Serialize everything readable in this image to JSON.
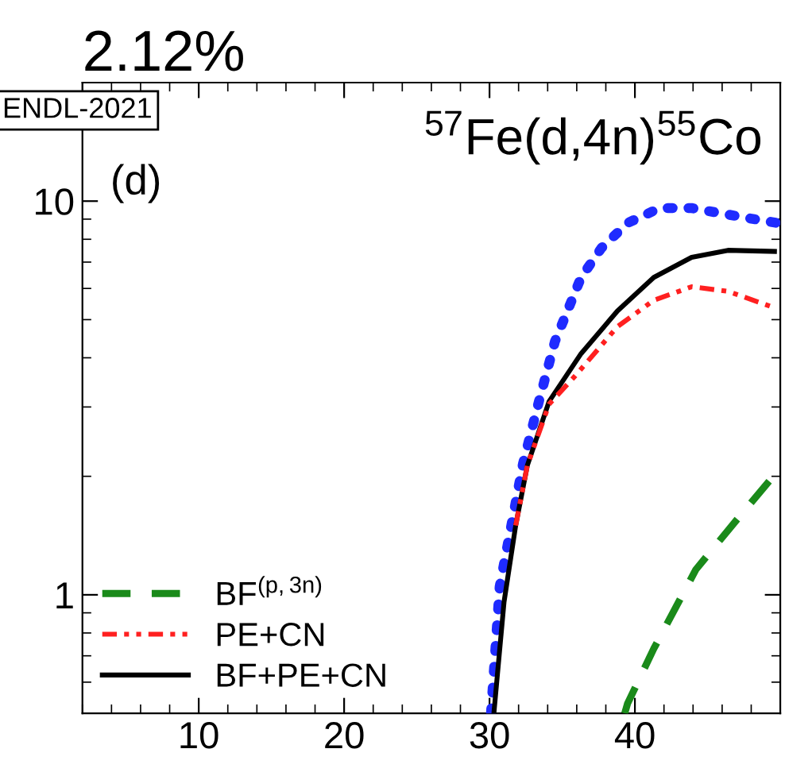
{
  "chart_data": {
    "type": "line",
    "title": "2.12%",
    "subtitle": "$^{57}$Fe(d,4n)$^{55}$Co",
    "annotations": [
      "(d)",
      "ENDL-2021"
    ],
    "xlim": [
      2,
      50
    ],
    "xticks": [
      10,
      20,
      30,
      40
    ],
    "ylim": [
      0.5,
      20
    ],
    "yticks": [
      1,
      10
    ],
    "log": "y",
    "legend": "bottom left",
    "grid": false,
    "series": [
      {
        "color": "#1f2bff",
        "line_style": "dotted",
        "x": [
          30.1,
          30.7,
          31.5,
          32.3,
          33.4,
          34.5,
          36.3,
          37.7,
          39.5,
          41.7,
          43.9,
          46.0,
          48.2,
          49.8
        ],
        "values": [
          0.5,
          1.05,
          1.5,
          2.15,
          3.1,
          4.4,
          6.4,
          7.6,
          8.8,
          9.6,
          9.6,
          9.3,
          9.0,
          8.8
        ]
      },
      {
        "name": "BF$^{(p,3n)}$",
        "color": "#1a8a1a",
        "line_style": "dashed",
        "x": [
          39.3,
          39.5,
          41.3,
          44.2,
          47,
          50
        ],
        "values": [
          0.5,
          0.53,
          0.73,
          1.16,
          1.55,
          2.1
        ]
      },
      {
        "name": "PE+CN",
        "color": "#ff2020",
        "line_style": "dashdot",
        "x": [
          31.8,
          32.6,
          34.1,
          35.9,
          38.8,
          41.3,
          43.9,
          46.4,
          49.6
        ],
        "values": [
          1.5,
          2.13,
          3.05,
          3.6,
          4.8,
          5.6,
          6.06,
          5.9,
          5.36
        ]
      },
      {
        "name": "BF+PE+CN",
        "color": "#000000",
        "line_style": "solid",
        "x": [
          30.3,
          31.0,
          31.8,
          32.6,
          34.1,
          36.3,
          38.8,
          41.3,
          43.9,
          46.4,
          49.6
        ],
        "values": [
          0.5,
          0.96,
          1.5,
          2.13,
          3.1,
          4.1,
          5.26,
          6.4,
          7.2,
          7.5,
          7.45
        ]
      }
    ]
  }
}
